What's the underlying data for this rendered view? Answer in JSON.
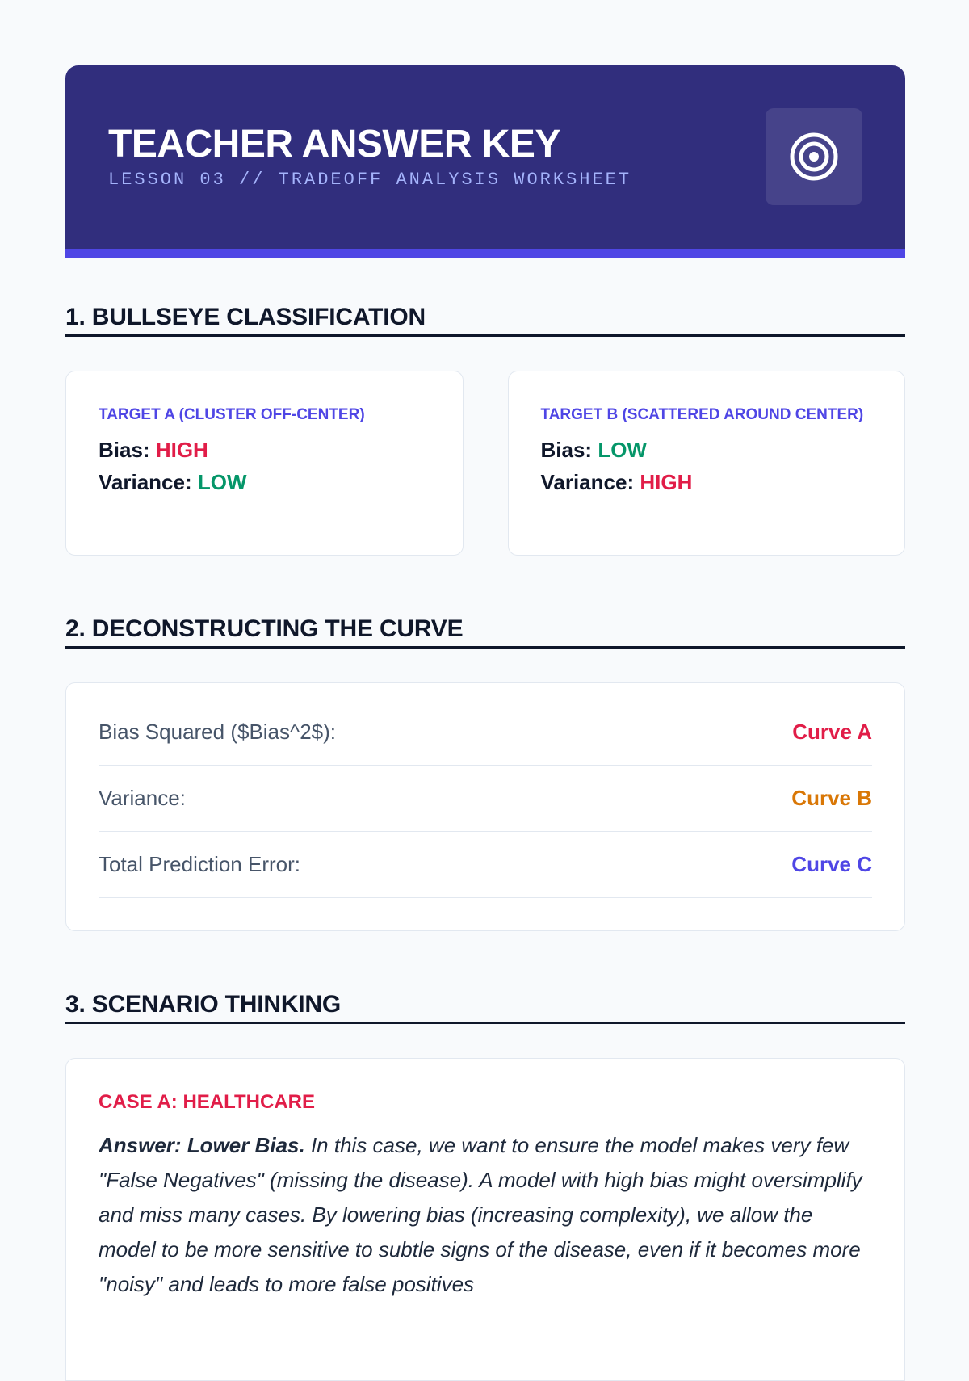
{
  "header": {
    "title": "TEACHER ANSWER KEY",
    "subtitle": "LESSON 03 // TRADEOFF ANALYSIS WORKSHEET",
    "icon": "target-icon"
  },
  "section1": {
    "heading": "1. BULLSEYE CLASSIFICATION",
    "cards": [
      {
        "label": "TARGET A (CLUSTER OFF-CENTER)",
        "bias_label": "Bias:",
        "bias": "HIGH",
        "variance_label": "Variance:",
        "variance": "LOW"
      },
      {
        "label": "TARGET B (SCATTERED AROUND CENTER)",
        "bias_label": "Bias:",
        "bias": "LOW",
        "variance_label": "Variance:",
        "variance": "HIGH"
      }
    ]
  },
  "section2": {
    "heading": "2. DECONSTRUCTING THE CURVE",
    "rows": [
      {
        "key": "Bias Squared ($Bias^2$):",
        "value": "Curve A",
        "color": "#e11d48"
      },
      {
        "key": "Variance:",
        "value": "Curve B",
        "color": "#d97706"
      },
      {
        "key": "Total Prediction Error:",
        "value": "Curve C",
        "color": "#4f46e5"
      }
    ]
  },
  "section3": {
    "heading": "3. SCENARIO THINKING",
    "case_a": {
      "label": "CASE A: HEALTHCARE",
      "answer_lead": "Answer: Lower Bias.",
      "answer_text": " In this case, we want to ensure the model makes very few \"False Negatives\" (missing the disease). A model with high bias might oversimplify and miss many cases. By lowering bias (increasing complexity), we allow the model to be more sensitive to subtle signs of the disease, even if it becomes more \"noisy\" and leads to more false positives"
    }
  }
}
